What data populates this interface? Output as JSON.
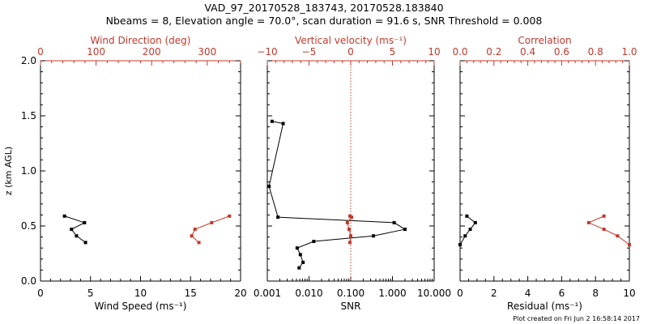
{
  "title": "VAD_97_20170528_183743, 20170528.183840",
  "subtitle": "Nbeams = 8, Elevation angle = 70.0°, scan duration = 91.6 s, SNR Threshold = 0.008",
  "footer": "Plot created on Fri Jun  2 16:58:14 2017",
  "colors": {
    "axis": "#000000",
    "accent": "#c0392b"
  },
  "chart_data": [
    {
      "type": "line",
      "panel": "wind",
      "ylabel": "z (km AGL)",
      "ylim": [
        0,
        2.0
      ],
      "yticks": [
        "0.0",
        "0.5",
        "1.0",
        "1.5",
        "2.0"
      ],
      "xlabel": "Wind Speed (ms⁻¹)",
      "xlim": [
        0,
        20
      ],
      "xticks": [
        "0",
        "5",
        "10",
        "15",
        "20"
      ],
      "top_xlabel": "Wind Direction (deg)",
      "top_xlim": [
        0,
        360
      ],
      "top_xticks": [
        "0",
        "100",
        "200",
        "300"
      ],
      "series": [
        {
          "axis": "bottom",
          "color": "#000000",
          "x": [
            4.5,
            3.6,
            3.1,
            4.4,
            2.4
          ],
          "y": [
            0.35,
            0.41,
            0.47,
            0.53,
            0.59
          ]
        },
        {
          "axis": "top",
          "color": "#c0392b",
          "x": [
            285,
            272,
            278,
            308,
            340
          ],
          "y": [
            0.35,
            0.41,
            0.47,
            0.53,
            0.59
          ]
        }
      ]
    },
    {
      "type": "line",
      "panel": "snr",
      "xlabel": "SNR",
      "xscale": "log",
      "xlim": [
        0.001,
        10
      ],
      "xticks": [
        "0.001",
        "0.010",
        "0.100",
        "1.000",
        "10.000"
      ],
      "top_xlabel": "Vertical velocity (ms⁻¹)",
      "top_xlim": [
        -10,
        10
      ],
      "top_xticks": [
        "−10",
        "−5",
        "0",
        "5",
        "10"
      ],
      "zero_line": 0,
      "series": [
        {
          "axis": "bottom",
          "color": "#000000",
          "x": [
            0.0058,
            0.0072,
            0.0062,
            0.0052,
            0.013,
            0.35,
            2.0,
            1.1,
            0.0018,
            0.0011,
            0.0024,
            0.0013
          ],
          "y": [
            0.12,
            0.17,
            0.24,
            0.3,
            0.36,
            0.41,
            0.47,
            0.53,
            0.58,
            0.86,
            1.43,
            1.45
          ]
        },
        {
          "axis": "top",
          "color": "#c0392b",
          "x": [
            -0.1,
            0.0,
            -0.2,
            -0.4,
            0.1,
            -0.1
          ],
          "y": [
            0.35,
            0.41,
            0.47,
            0.53,
            0.58,
            0.59
          ]
        }
      ]
    },
    {
      "type": "line",
      "panel": "residual",
      "xlabel": "Residual (ms⁻¹)",
      "xlim": [
        0,
        10
      ],
      "xticks": [
        "0",
        "2",
        "4",
        "6",
        "8",
        "10"
      ],
      "top_xlabel": "Correlation",
      "top_xlim": [
        0,
        1.0
      ],
      "top_xticks": [
        "0.0",
        "0.2",
        "0.4",
        "0.6",
        "0.8",
        "1.0"
      ],
      "series": [
        {
          "axis": "bottom",
          "color": "#000000",
          "x": [
            0.0,
            0.3,
            0.6,
            0.9,
            0.4
          ],
          "y": [
            0.33,
            0.41,
            0.47,
            0.53,
            0.59
          ]
        },
        {
          "axis": "top",
          "color": "#c0392b",
          "x": [
            1.0,
            0.93,
            0.85,
            0.76,
            0.85
          ],
          "y": [
            0.33,
            0.41,
            0.47,
            0.53,
            0.59
          ]
        }
      ]
    }
  ]
}
